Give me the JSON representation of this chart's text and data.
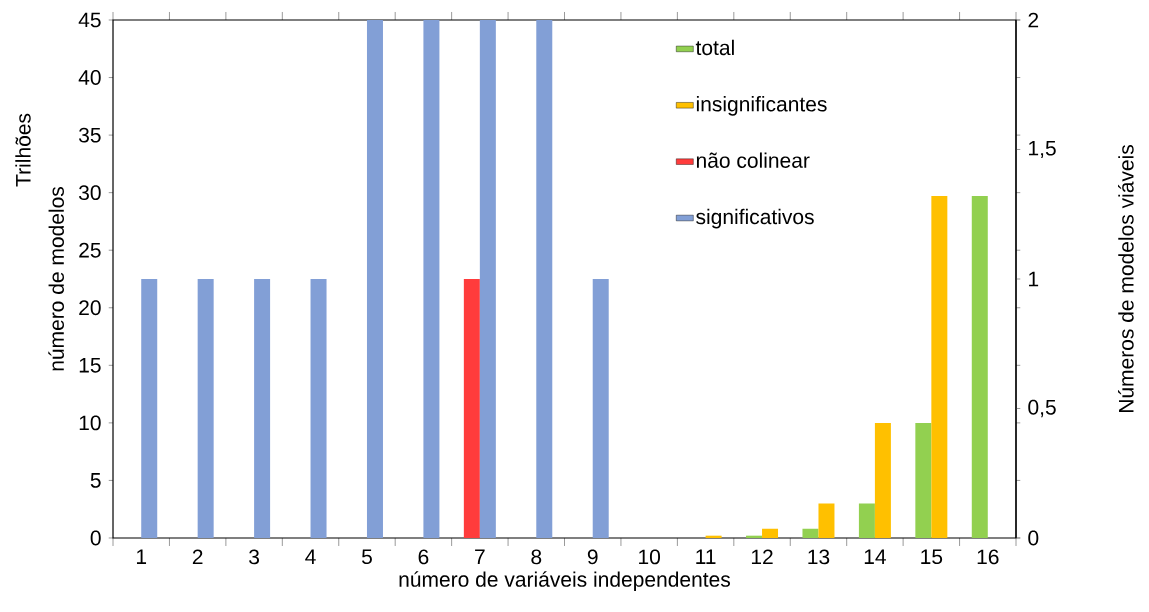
{
  "chart_data": {
    "type": "bar",
    "categories": [
      "1",
      "2",
      "3",
      "4",
      "5",
      "6",
      "7",
      "8",
      "9",
      "10",
      "11",
      "12",
      "13",
      "14",
      "15",
      "16"
    ],
    "xlabel": "número de variáveis  independentes",
    "ylabel": "número de modelos",
    "y2label": "Números de modelos viáveis",
    "annotations": [
      "Trilhões"
    ],
    "ylim": [
      0,
      45
    ],
    "yticks": [
      0,
      5,
      10,
      15,
      20,
      25,
      30,
      35,
      40,
      45
    ],
    "y2lim": [
      0,
      2
    ],
    "y2ticks": [
      0,
      {
        "value": 0.5,
        "label": "0,5"
      },
      1,
      {
        "value": 1.5,
        "label": "1,5"
      },
      2
    ],
    "legend": "top right",
    "series": [
      {
        "name": "total",
        "color": "#92d050",
        "values": [
          0,
          0,
          0,
          0,
          0,
          0,
          0,
          0,
          0,
          0,
          0,
          0.2,
          0.8,
          3,
          10,
          29.7
        ]
      },
      {
        "name": "insignificantes",
        "color": "#ffc000",
        "values": [
          0,
          0,
          0,
          0,
          0,
          0,
          0,
          0,
          0,
          0,
          0.2,
          0.8,
          3,
          10,
          29.7,
          0
        ]
      },
      {
        "name": "não colinear",
        "color": "#ff3c3c",
        "axis": "y2",
        "values": [
          0,
          0,
          0,
          0,
          0,
          0,
          1,
          0,
          0,
          0,
          0,
          0,
          0,
          0,
          0,
          0
        ]
      },
      {
        "name": "significativos",
        "color": "#829fd6",
        "axis": "y2",
        "values": [
          1,
          1,
          1,
          1,
          2,
          2,
          2,
          2,
          1,
          0,
          0,
          0,
          0,
          0,
          0,
          0
        ]
      }
    ]
  }
}
